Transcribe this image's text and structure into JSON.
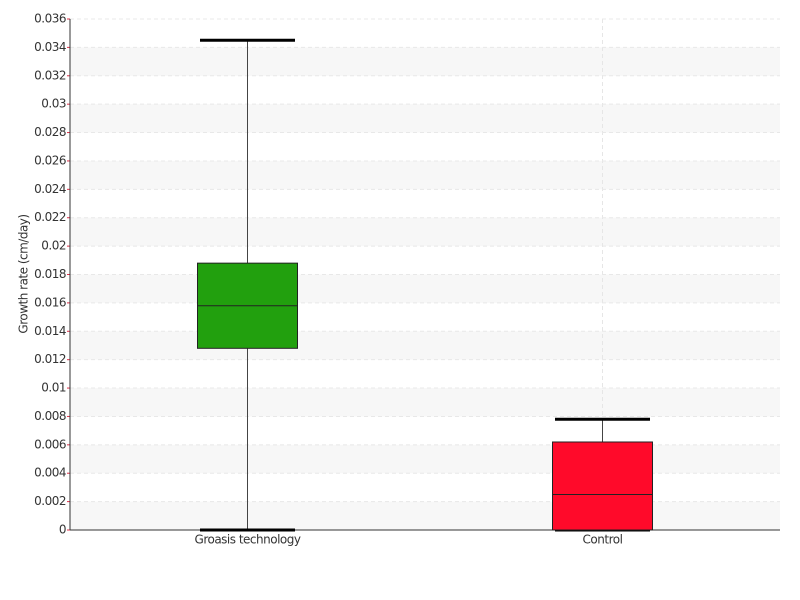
{
  "chart_data": {
    "type": "box",
    "y_label": "Growth rate (cm/day)",
    "categories": [
      "Groasis technology",
      "Control"
    ],
    "boxes": [
      {
        "min": 0,
        "q1": 0.0128,
        "median": 0.0158,
        "q3": 0.0188,
        "max": 0.0345
      },
      {
        "min": 0,
        "q1": 0,
        "median": 0.0025,
        "q3": 0.0062,
        "max": 0.0078
      }
    ],
    "colors": [
      "#22a00e",
      "#ff0a2a"
    ],
    "ylim": [
      0,
      0.036
    ],
    "yticks": [
      0,
      0.002,
      0.004,
      0.006,
      0.008,
      0.01,
      0.012,
      0.014,
      0.016,
      0.018,
      0.02,
      0.022,
      0.024,
      0.026,
      0.028,
      0.03,
      0.032,
      0.034,
      0.036
    ],
    "grid": true
  }
}
